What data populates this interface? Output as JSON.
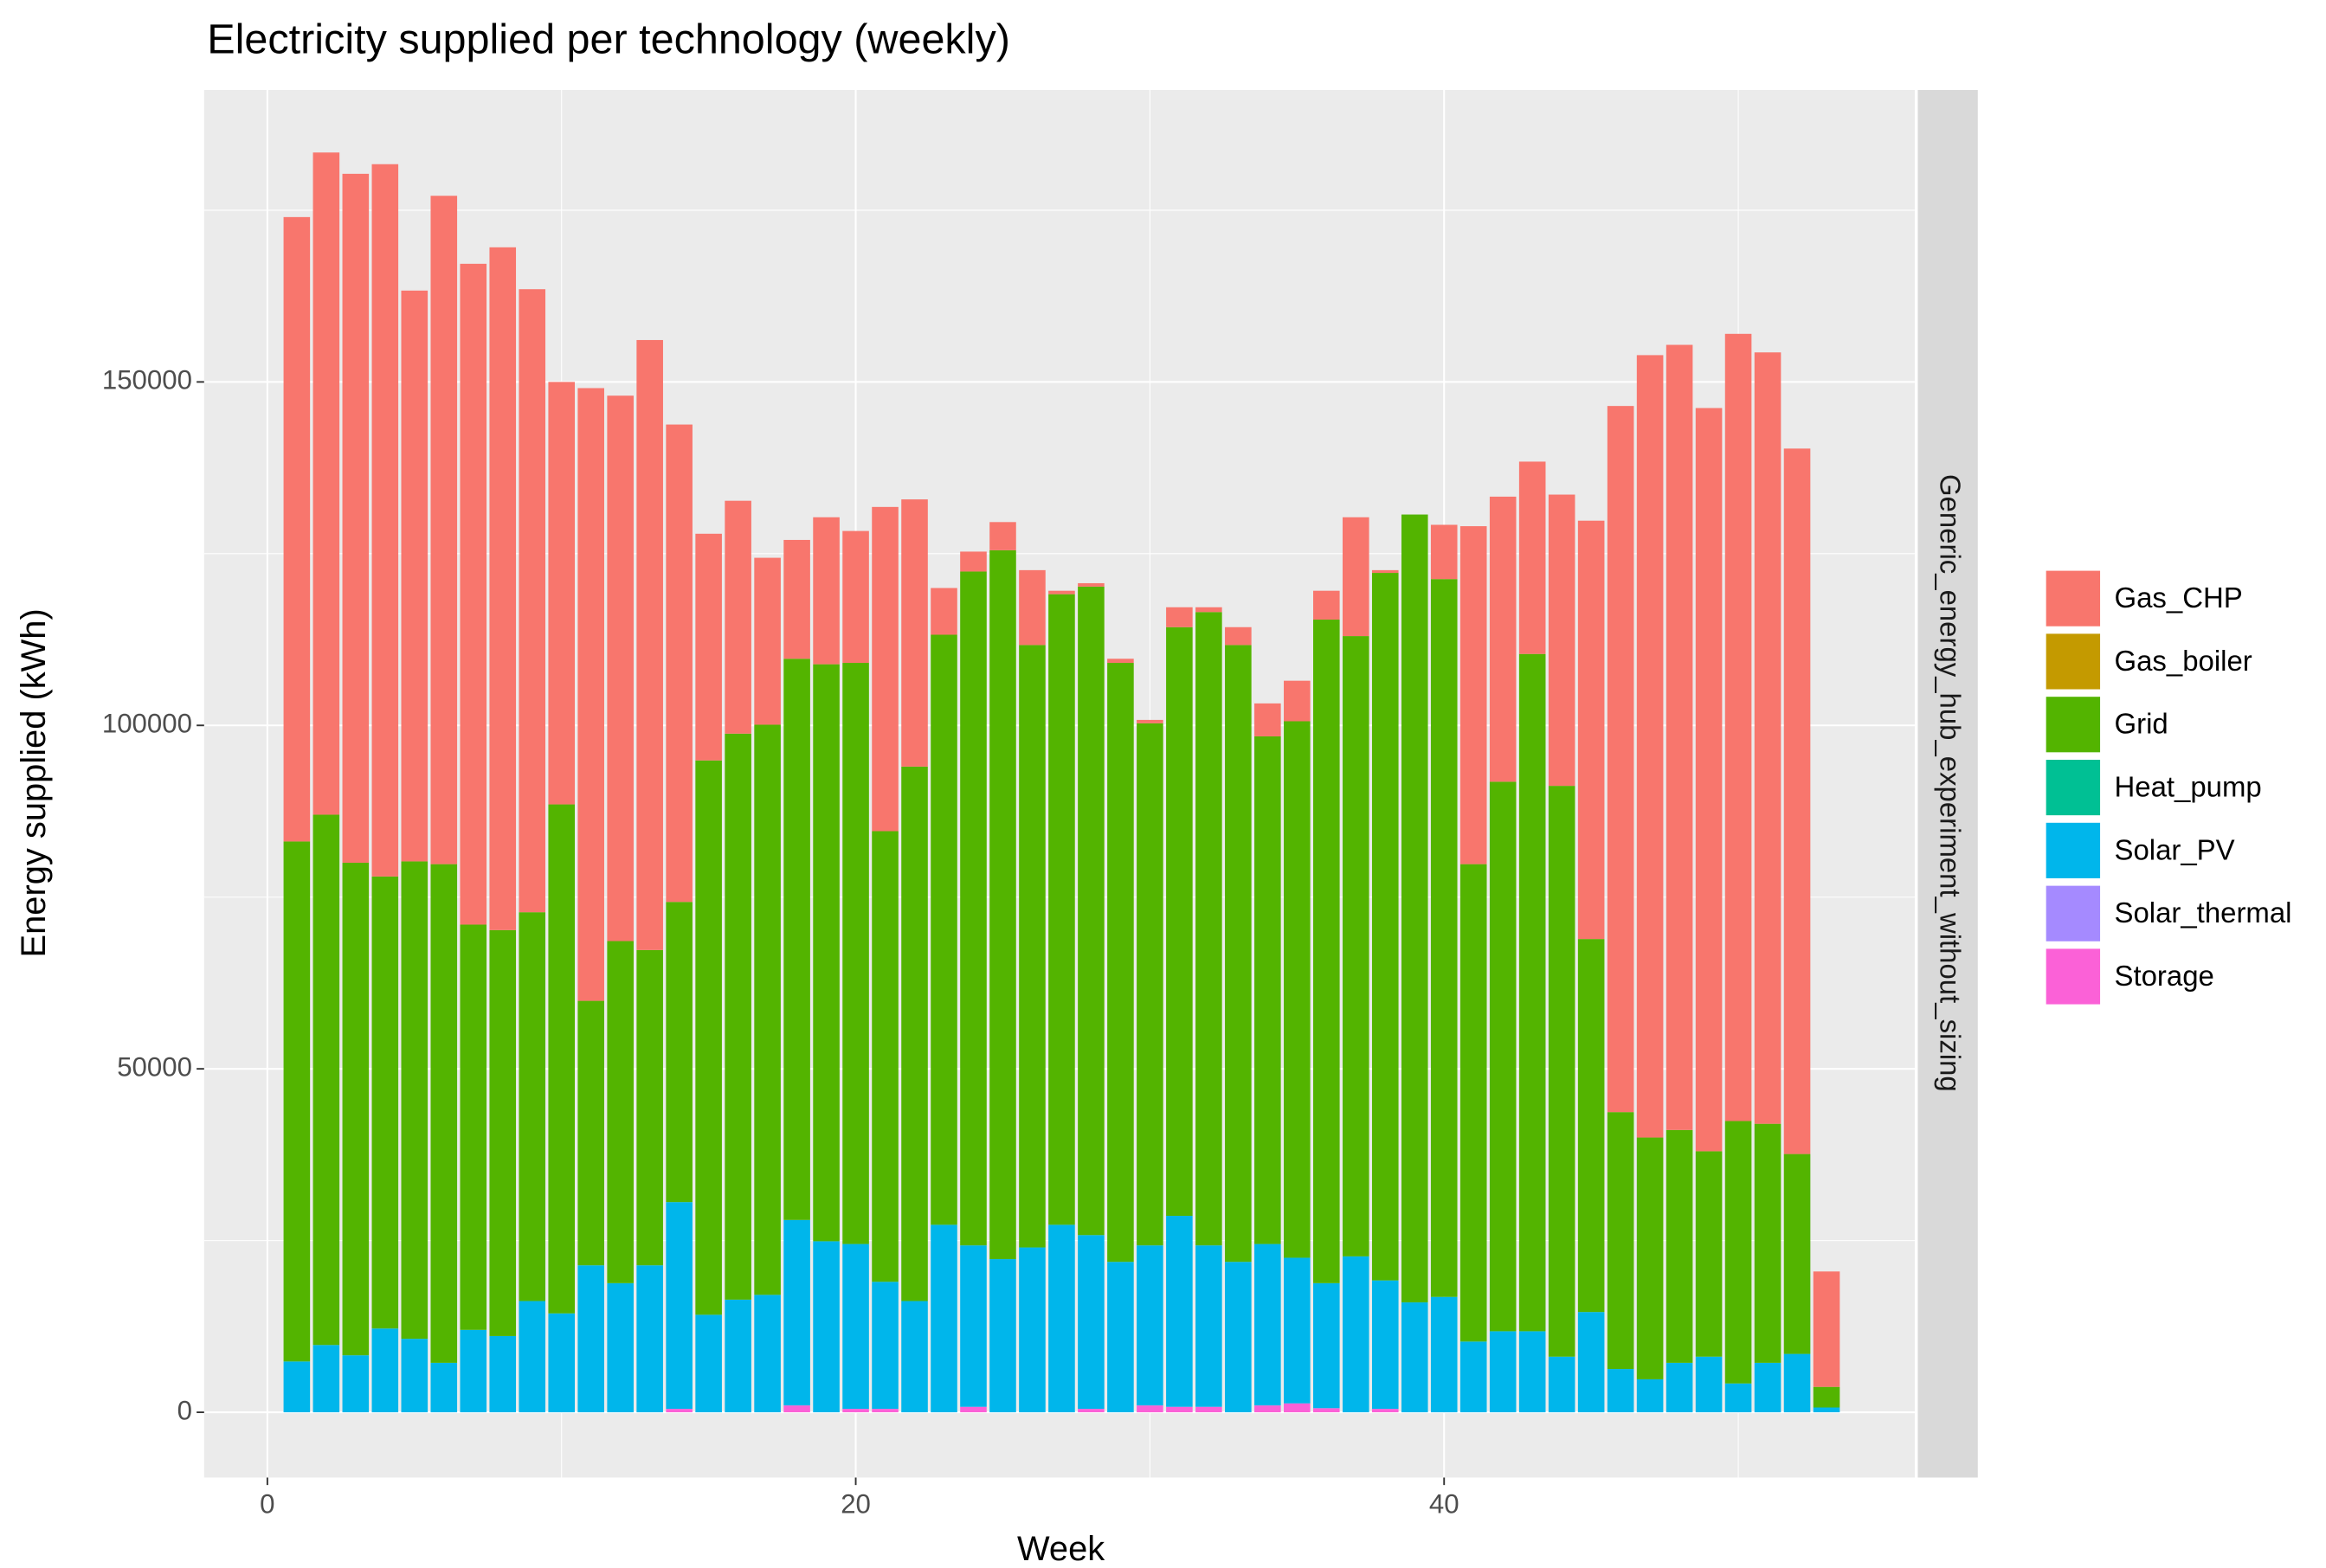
{
  "chart_data": {
    "type": "stacked_bar",
    "title": "Electricity supplied per technology (weekly)",
    "x_label": "Week",
    "y_label": "Energy supplied (kWh)",
    "facet_label": "Generic_energy_hub_experiment_without_sizing",
    "x": [
      1,
      2,
      3,
      4,
      5,
      6,
      7,
      8,
      9,
      10,
      11,
      12,
      13,
      14,
      15,
      16,
      17,
      18,
      19,
      20,
      21,
      22,
      23,
      24,
      25,
      26,
      27,
      28,
      29,
      30,
      31,
      32,
      33,
      34,
      35,
      36,
      37,
      38,
      39,
      40,
      41,
      42,
      43,
      44,
      45,
      46,
      47,
      48,
      49,
      50,
      51,
      52,
      53
    ],
    "series": [
      {
        "name": "Gas_CHP",
        "color": "#F8766D",
        "values": [
          90900,
          96400,
          100300,
          103700,
          83100,
          97300,
          96200,
          99400,
          90700,
          61500,
          89200,
          79400,
          88800,
          69500,
          33000,
          33900,
          24300,
          17300,
          21400,
          19200,
          47200,
          38900,
          6800,
          2900,
          4100,
          10900,
          500,
          500,
          600,
          500,
          2900,
          700,
          2600,
          4800,
          5900,
          4200,
          17300,
          400,
          0,
          7900,
          49200,
          41500,
          28000,
          42400,
          60900,
          102800,
          113900,
          114300,
          108200,
          114600,
          112300,
          102700,
          16800
        ]
      },
      {
        "name": "Gas_boiler",
        "color": "#C49A00",
        "values": [
          0,
          0,
          0,
          0,
          0,
          0,
          0,
          0,
          0,
          0,
          0,
          0,
          0,
          0,
          0,
          0,
          0,
          0,
          0,
          0,
          0,
          0,
          0,
          0,
          0,
          0,
          0,
          0,
          0,
          0,
          0,
          0,
          0,
          0,
          0,
          0,
          0,
          0,
          0,
          0,
          0,
          0,
          0,
          0,
          0,
          0,
          0,
          0,
          0,
          0,
          0,
          0,
          0
        ]
      },
      {
        "name": "Grid",
        "color": "#53B400",
        "values": [
          75700,
          77200,
          71700,
          65800,
          69500,
          72600,
          59000,
          59100,
          56600,
          74100,
          38500,
          49800,
          45900,
          43700,
          80700,
          82400,
          83000,
          81700,
          84000,
          84600,
          65600,
          77800,
          85900,
          98100,
          103200,
          87700,
          91800,
          94400,
          87200,
          76000,
          85700,
          92200,
          89800,
          73900,
          78100,
          96600,
          90300,
          103000,
          114700,
          104500,
          69500,
          80000,
          98600,
          83100,
          54300,
          37400,
          35200,
          33900,
          29900,
          38200,
          34800,
          29100,
          3000
        ]
      },
      {
        "name": "Heat_pump",
        "color": "#00C094",
        "values": [
          0,
          0,
          0,
          0,
          0,
          0,
          0,
          0,
          0,
          0,
          0,
          0,
          0,
          0,
          0,
          0,
          0,
          0,
          0,
          0,
          0,
          0,
          0,
          0,
          0,
          0,
          0,
          0,
          0,
          0,
          0,
          0,
          0,
          0,
          0,
          0,
          0,
          0,
          0,
          0,
          0,
          0,
          0,
          0,
          0,
          0,
          0,
          0,
          0,
          0,
          0,
          0,
          0
        ]
      },
      {
        "name": "Solar_PV",
        "color": "#00B6EB",
        "values": [
          7400,
          9800,
          8300,
          12200,
          10700,
          7200,
          12000,
          11100,
          16200,
          14400,
          21400,
          18800,
          21400,
          30100,
          14200,
          16400,
          17100,
          27000,
          24900,
          24000,
          18500,
          16200,
          27300,
          23500,
          22300,
          24000,
          27300,
          25300,
          21900,
          23300,
          27800,
          23500,
          21900,
          23500,
          21200,
          18200,
          22700,
          18700,
          16000,
          16800,
          10300,
          11800,
          11800,
          8100,
          14600,
          6300,
          4800,
          7200,
          8100,
          4200,
          7200,
          8500,
          700
        ]
      },
      {
        "name": "Solar_thermal",
        "color": "#A58AFF",
        "values": [
          0,
          0,
          0,
          0,
          0,
          0,
          0,
          0,
          0,
          0,
          0,
          0,
          0,
          0,
          0,
          0,
          0,
          0,
          0,
          0,
          0,
          0,
          0,
          0,
          0,
          0,
          0,
          0,
          0,
          0,
          0,
          0,
          0,
          0,
          0,
          0,
          0,
          0,
          0,
          0,
          0,
          0,
          0,
          0,
          0,
          0,
          0,
          0,
          0,
          0,
          0,
          0,
          0
        ]
      },
      {
        "name": "Storage",
        "color": "#FB61D7",
        "values": [
          0,
          0,
          0,
          0,
          0,
          0,
          0,
          0,
          0,
          0,
          0,
          0,
          0,
          500,
          0,
          0,
          0,
          1000,
          0,
          500,
          500,
          0,
          0,
          800,
          0,
          0,
          0,
          500,
          0,
          1000,
          800,
          800,
          0,
          1000,
          1300,
          600,
          0,
          500,
          0,
          0,
          0,
          0,
          0,
          0,
          0,
          0,
          0,
          0,
          0,
          0,
          0,
          0,
          0
        ]
      }
    ],
    "xlim": [
      -2.15,
      56
    ],
    "xticks": [
      0,
      20,
      40
    ],
    "x_minor_ticks": [
      10,
      30,
      50
    ],
    "ylim": [
      -9500,
      192500
    ],
    "yticks": [
      0,
      50000,
      100000,
      150000
    ],
    "y_minor_ticks": [
      25000,
      75000,
      125000,
      175000
    ],
    "grid": true,
    "legend_position": "right"
  }
}
